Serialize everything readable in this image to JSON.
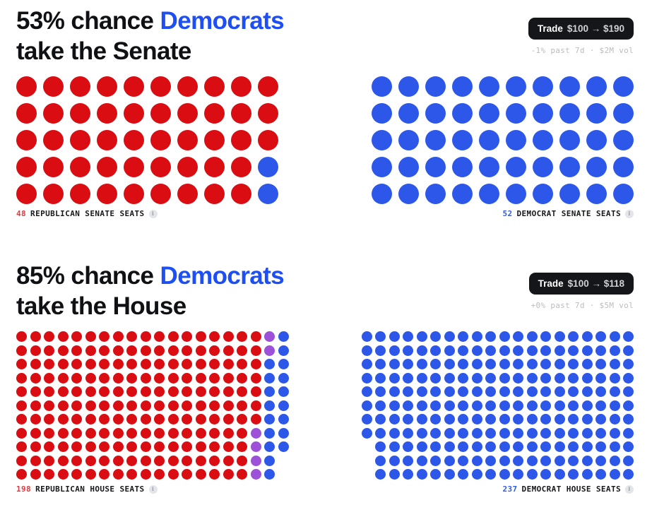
{
  "colors": {
    "red": "#d90d12",
    "blue": "#2d57e8",
    "purple": "#9d50d8",
    "title_blue": "#1e4ff5"
  },
  "icons": {
    "info": "i"
  },
  "sections": [
    {
      "id": "senate",
      "title": {
        "prefix": "53% chance ",
        "highlight": "Democrats",
        "line2": "take the Senate"
      },
      "trade": {
        "label": "Trade",
        "value": "$100 → $190"
      },
      "stats": "-1% past 7d · $2M vol",
      "left_label": {
        "count": "48",
        "text": "REPUBLICAN SENATE SEATS"
      },
      "right_label": {
        "count": "52",
        "text": "DEMOCRAT SENATE SEATS"
      }
    },
    {
      "id": "house",
      "title": {
        "prefix": "85% chance ",
        "highlight": "Democrats",
        "line2": "take the House"
      },
      "trade": {
        "label": "Trade",
        "value": "$100 → $118"
      },
      "stats": "+0% past 7d · $5M vol",
      "left_label": {
        "count": "198",
        "text": "REPUBLICAN HOUSE SEATS"
      },
      "right_label": {
        "count": "237",
        "text": "DEMOCRAT HOUSE SEATS"
      }
    }
  ],
  "chart_data": [
    {
      "type": "waffle-dot-grid",
      "title": "53% chance Democrats take the Senate",
      "republican_seats": 48,
      "democrat_seats": 52,
      "legend": {
        "R": "red dot (Republican)",
        "B": "blue dot (Democrat)",
        "P": "purple dot",
        ".": "empty slot"
      },
      "left_grid_dot_counts": {
        "red": 48,
        "blue": 2
      },
      "right_grid_dot_counts": {
        "blue": 50
      },
      "left_grid": [
        "RRRRRRRRRR",
        "RRRRRRRRRR",
        "RRRRRRRRRR",
        "RRRRRRRRRB",
        "RRRRRRRRRB"
      ],
      "right_grid": [
        "BBBBBBBBBB",
        "BBBBBBBBBB",
        "BBBBBBBBBB",
        "BBBBBBBBBB",
        "BBBBBBBBBB"
      ]
    },
    {
      "type": "waffle-dot-grid",
      "title": "85% chance Democrats take the House",
      "republican_seats": 198,
      "democrat_seats": 237,
      "legend": {
        "R": "red dot (Republican)",
        "B": "blue dot (Democrat)",
        "P": "purple dot",
        ".": "empty slot"
      },
      "left_grid_dot_counts": {
        "red": 194,
        "purple": 6,
        "blue": 18
      },
      "right_grid_dot_counts": {
        "blue": 217
      },
      "left_grid": [
        "RRRRRRRRRRRRRRRRRRPB",
        "RRRRRRRRRRRRRRRRRRPB",
        "RRRRRRRRRRRRRRRRRRBB",
        "RRRRRRRRRRRRRRRRRRBB",
        "RRRRRRRRRRRRRRRRRRBB",
        "RRRRRRRRRRRRRRRRRRBB",
        "RRRRRRRRRRRRRRRRRRBB",
        "RRRRRRRRRRRRRRRRRPBB",
        "RRRRRRRRRRRRRRRRRPBB",
        "RRRRRRRRRRRRRRRRRPB",
        "RRRRRRRRRRRRRRRRRPB"
      ],
      "right_grid": [
        "BBBBBBBBBBBBBBBBBBBB",
        "BBBBBBBBBBBBBBBBBBBB",
        "BBBBBBBBBBBBBBBBBBBB",
        "BBBBBBBBBBBBBBBBBBBB",
        "BBBBBBBBBBBBBBBBBBBB",
        "BBBBBBBBBBBBBBBBBBBB",
        "BBBBBBBBBBBBBBBBBBBB",
        "BBBBBBBBBBBBBBBBBBBB",
        ".BBBBBBBBBBBBBBBBBBB",
        ".BBBBBBBBBBBBBBBBBBB",
        ".BBBBBBBBBBBBBBBBBBB"
      ]
    }
  ]
}
